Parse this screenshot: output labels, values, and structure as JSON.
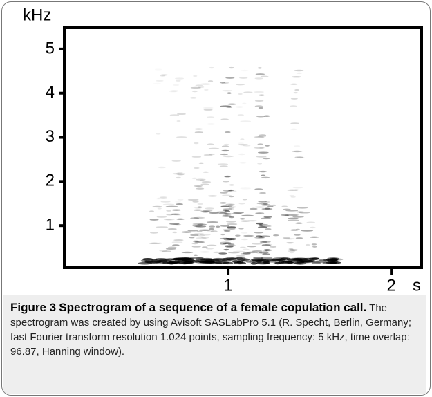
{
  "chart_data": {
    "type": "spectrogram",
    "y_label": "kHz",
    "x_label": "s",
    "xlim": [
      0,
      2.19
    ],
    "xticks": [
      1,
      2
    ],
    "ylim": [
      0,
      5.5
    ],
    "yticks": [
      1,
      2,
      3,
      4,
      5
    ]
  },
  "caption": {
    "label": "Figure 3",
    "title": "Spectrogram of a sequence of a female copulation call.",
    "text": "The spectrogram was created by using Avisoft SASLabPro 5.1 (R. Specht, Berlin, Germany; fast Fourier transform resolution 1.024 points, sampling frequency: 5 kHz, time overlap: 96.87, Hanning window)."
  }
}
